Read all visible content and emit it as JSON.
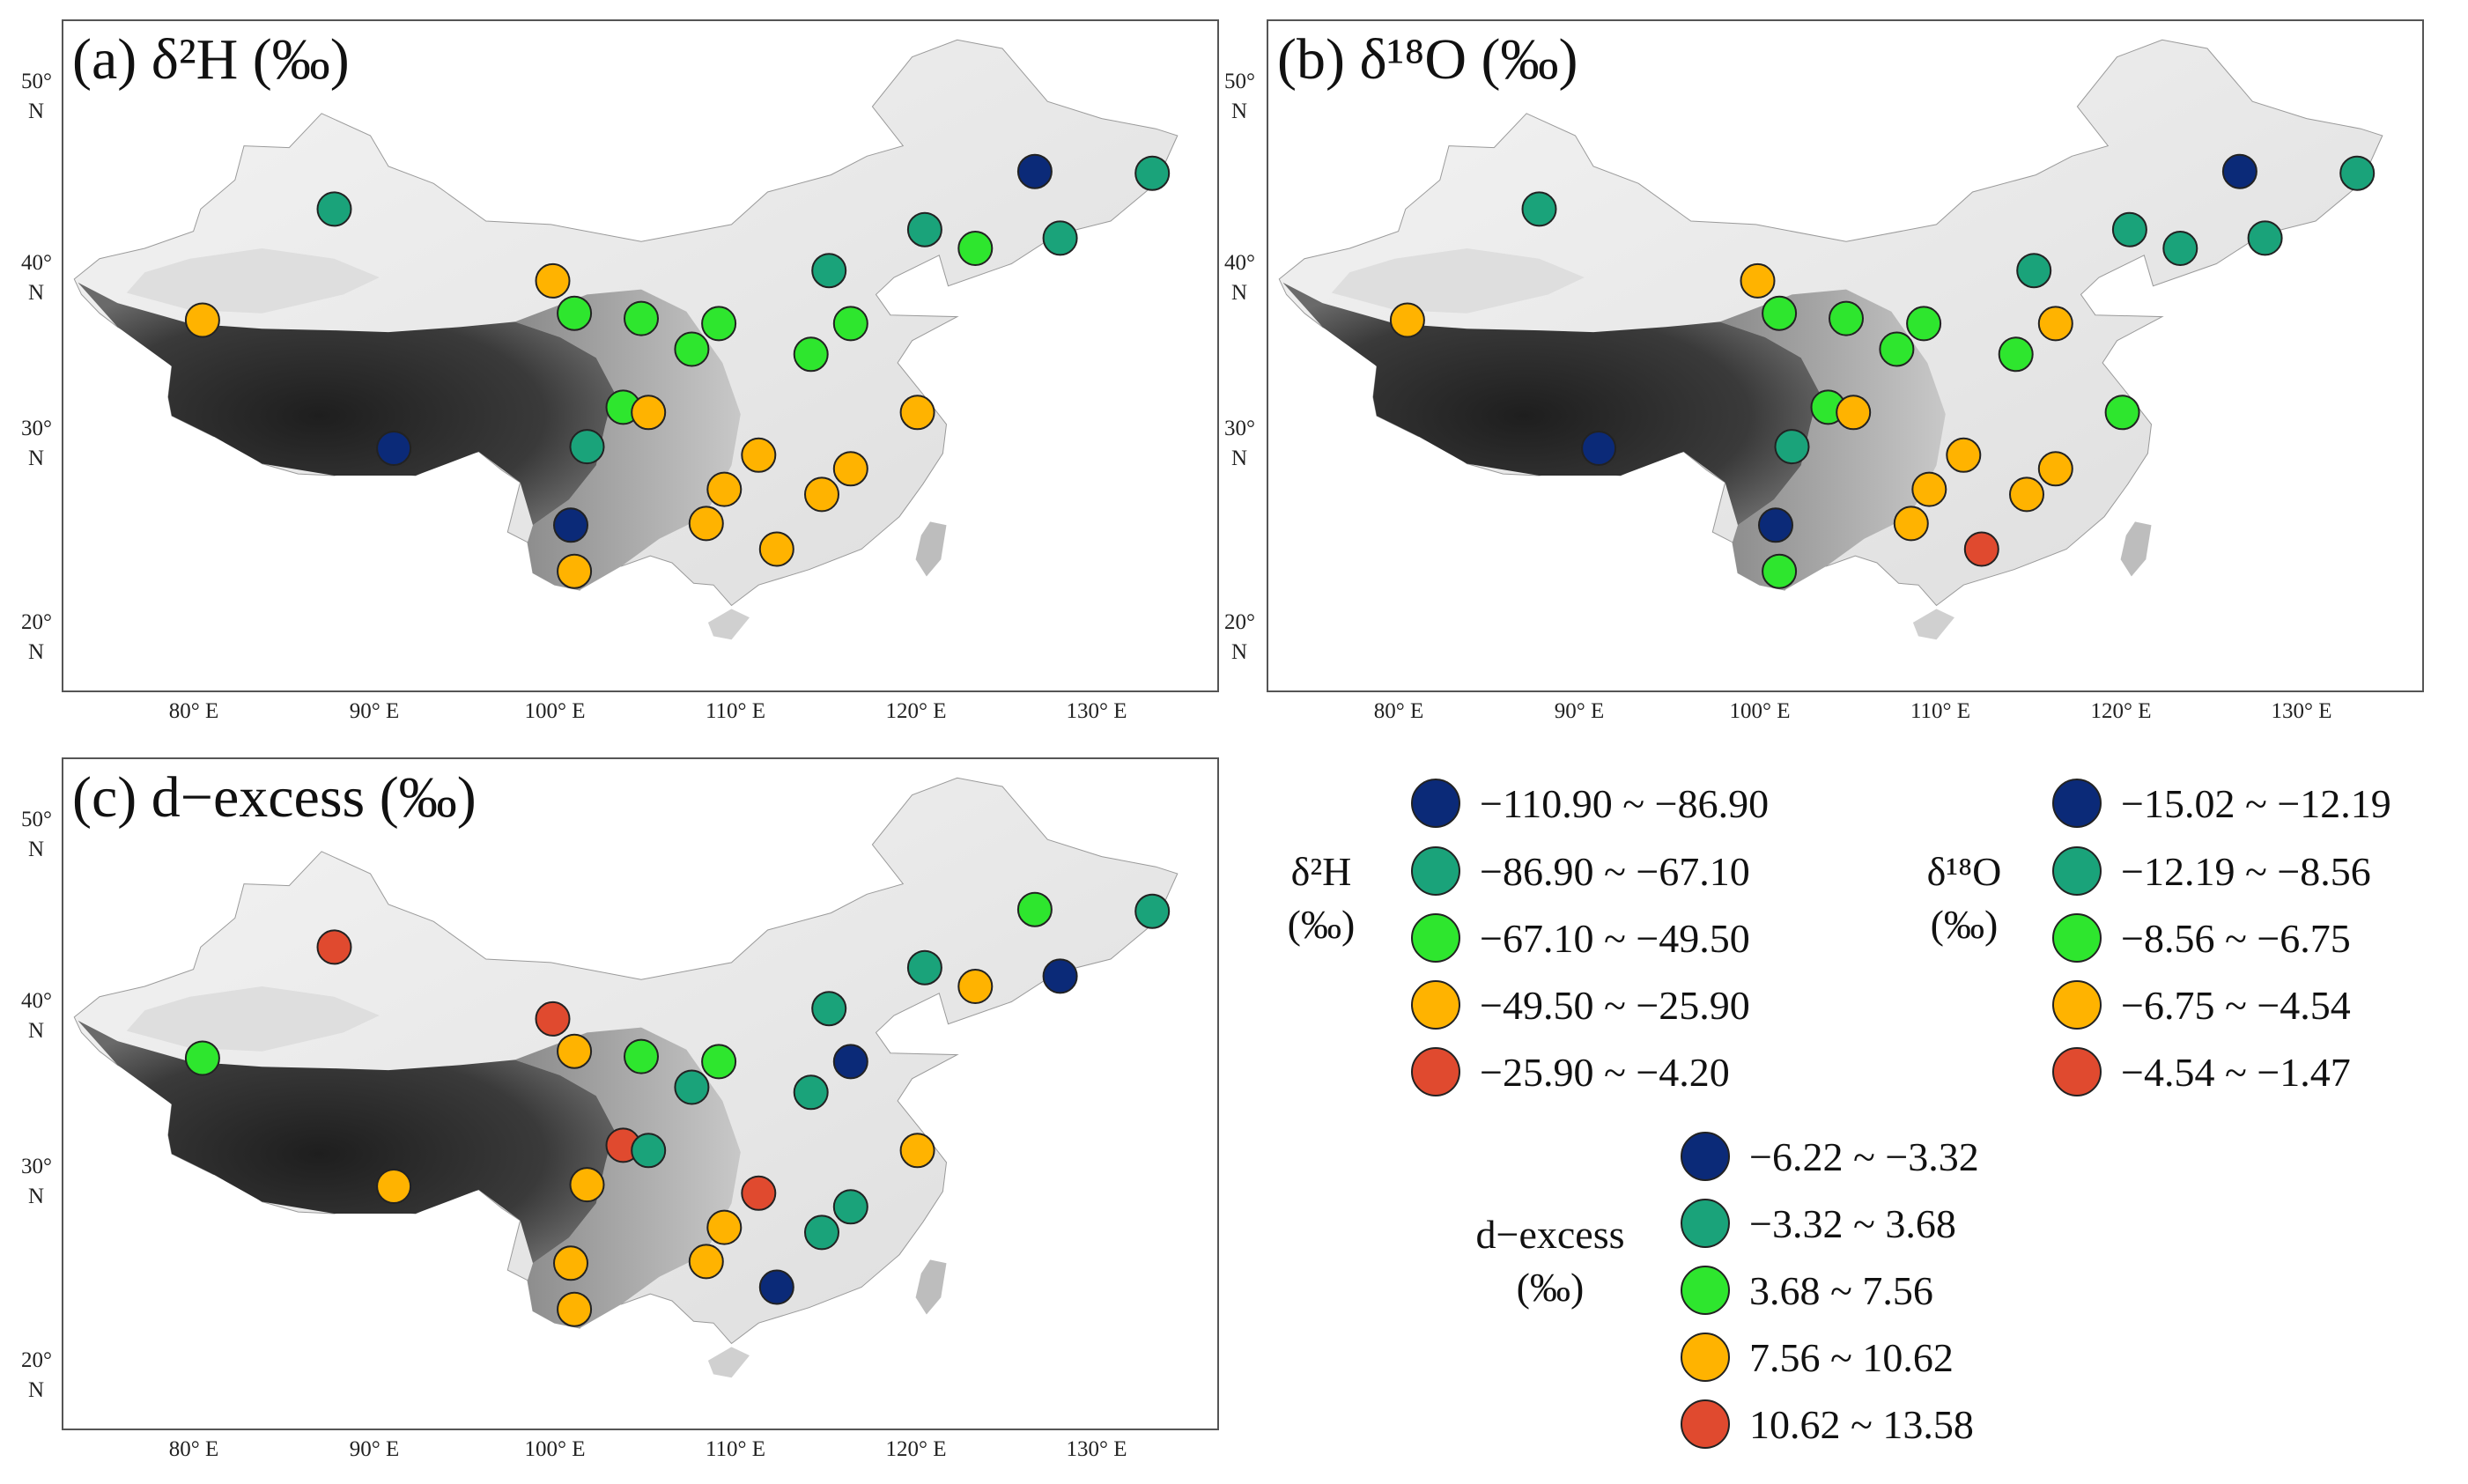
{
  "colors": {
    "class1": "#0b2a78",
    "class2": "#1aa37a",
    "class3": "#2ee62e",
    "class4": "#ffb300",
    "class5": "#e04a2f"
  },
  "axes": {
    "y_labels": [
      {
        "deg": "50°",
        "hemi": "N"
      },
      {
        "deg": "40°",
        "hemi": "N"
      },
      {
        "deg": "30°",
        "hemi": "N"
      },
      {
        "deg": "20°",
        "hemi": "N"
      }
    ],
    "x_labels": [
      "80° E",
      "90° E",
      "100° E",
      "110° E",
      "120° E",
      "130° E"
    ]
  },
  "panels": [
    {
      "key": "a",
      "title": "(a) δ²H (‰)",
      "stations": [
        {
          "lon": 126.8,
          "lat": 45.7,
          "cls": 1
        },
        {
          "lon": 133.3,
          "lat": 45.6,
          "cls": 2
        },
        {
          "lon": 88.0,
          "lat": 43.5,
          "cls": 2
        },
        {
          "lon": 120.7,
          "lat": 42.3,
          "cls": 2
        },
        {
          "lon": 128.2,
          "lat": 41.8,
          "cls": 2
        },
        {
          "lon": 123.5,
          "lat": 41.2,
          "cls": 3
        },
        {
          "lon": 115.4,
          "lat": 39.9,
          "cls": 2
        },
        {
          "lon": 100.1,
          "lat": 39.3,
          "cls": 4
        },
        {
          "lon": 101.3,
          "lat": 37.4,
          "cls": 3
        },
        {
          "lon": 105.0,
          "lat": 37.1,
          "cls": 3
        },
        {
          "lon": 109.3,
          "lat": 36.8,
          "cls": 3
        },
        {
          "lon": 116.6,
          "lat": 36.8,
          "cls": 3
        },
        {
          "lon": 107.8,
          "lat": 35.3,
          "cls": 3
        },
        {
          "lon": 114.4,
          "lat": 35.0,
          "cls": 3
        },
        {
          "lon": 80.7,
          "lat": 37.0,
          "cls": 4
        },
        {
          "lon": 104.0,
          "lat": 31.9,
          "cls": 3
        },
        {
          "lon": 105.4,
          "lat": 31.6,
          "cls": 4
        },
        {
          "lon": 120.3,
          "lat": 31.6,
          "cls": 4
        },
        {
          "lon": 91.3,
          "lat": 29.5,
          "cls": 1
        },
        {
          "lon": 102.0,
          "lat": 29.6,
          "cls": 2
        },
        {
          "lon": 111.5,
          "lat": 29.1,
          "cls": 4
        },
        {
          "lon": 116.6,
          "lat": 28.3,
          "cls": 4
        },
        {
          "lon": 109.6,
          "lat": 27.1,
          "cls": 4
        },
        {
          "lon": 115.0,
          "lat": 26.8,
          "cls": 4
        },
        {
          "lon": 101.1,
          "lat": 25.0,
          "cls": 1
        },
        {
          "lon": 108.6,
          "lat": 25.1,
          "cls": 4
        },
        {
          "lon": 112.5,
          "lat": 23.6,
          "cls": 4
        },
        {
          "lon": 101.3,
          "lat": 22.3,
          "cls": 4
        }
      ]
    },
    {
      "key": "b",
      "title": "(b) δ¹⁸O (‰)",
      "stations": [
        {
          "lon": 126.8,
          "lat": 45.7,
          "cls": 1
        },
        {
          "lon": 133.3,
          "lat": 45.6,
          "cls": 2
        },
        {
          "lon": 88.0,
          "lat": 43.5,
          "cls": 2
        },
        {
          "lon": 120.7,
          "lat": 42.3,
          "cls": 2
        },
        {
          "lon": 128.2,
          "lat": 41.8,
          "cls": 2
        },
        {
          "lon": 123.5,
          "lat": 41.2,
          "cls": 2
        },
        {
          "lon": 115.4,
          "lat": 39.9,
          "cls": 2
        },
        {
          "lon": 100.1,
          "lat": 39.3,
          "cls": 4
        },
        {
          "lon": 101.3,
          "lat": 37.4,
          "cls": 3
        },
        {
          "lon": 105.0,
          "lat": 37.1,
          "cls": 3
        },
        {
          "lon": 109.3,
          "lat": 36.8,
          "cls": 3
        },
        {
          "lon": 116.6,
          "lat": 36.8,
          "cls": 4
        },
        {
          "lon": 107.8,
          "lat": 35.3,
          "cls": 3
        },
        {
          "lon": 114.4,
          "lat": 35.0,
          "cls": 3
        },
        {
          "lon": 80.7,
          "lat": 37.0,
          "cls": 4
        },
        {
          "lon": 104.0,
          "lat": 31.9,
          "cls": 3
        },
        {
          "lon": 105.4,
          "lat": 31.6,
          "cls": 4
        },
        {
          "lon": 120.3,
          "lat": 31.6,
          "cls": 3
        },
        {
          "lon": 91.3,
          "lat": 29.5,
          "cls": 1
        },
        {
          "lon": 102.0,
          "lat": 29.6,
          "cls": 2
        },
        {
          "lon": 111.5,
          "lat": 29.1,
          "cls": 4
        },
        {
          "lon": 116.6,
          "lat": 28.3,
          "cls": 4
        },
        {
          "lon": 109.6,
          "lat": 27.1,
          "cls": 4
        },
        {
          "lon": 115.0,
          "lat": 26.8,
          "cls": 4
        },
        {
          "lon": 101.1,
          "lat": 25.0,
          "cls": 1
        },
        {
          "lon": 108.6,
          "lat": 25.1,
          "cls": 4
        },
        {
          "lon": 112.5,
          "lat": 23.6,
          "cls": 5
        },
        {
          "lon": 101.3,
          "lat": 22.3,
          "cls": 3
        }
      ]
    },
    {
      "key": "c",
      "title": "(c) d−excess  (‰)",
      "stations": [
        {
          "lon": 126.8,
          "lat": 45.7,
          "cls": 3
        },
        {
          "lon": 133.3,
          "lat": 45.6,
          "cls": 2
        },
        {
          "lon": 88.0,
          "lat": 43.5,
          "cls": 5
        },
        {
          "lon": 120.7,
          "lat": 42.3,
          "cls": 2
        },
        {
          "lon": 128.2,
          "lat": 41.8,
          "cls": 1
        },
        {
          "lon": 123.5,
          "lat": 41.2,
          "cls": 4
        },
        {
          "lon": 115.4,
          "lat": 39.9,
          "cls": 2
        },
        {
          "lon": 100.1,
          "lat": 39.3,
          "cls": 5
        },
        {
          "lon": 101.3,
          "lat": 37.4,
          "cls": 4
        },
        {
          "lon": 105.0,
          "lat": 37.1,
          "cls": 3
        },
        {
          "lon": 109.3,
          "lat": 36.8,
          "cls": 3
        },
        {
          "lon": 116.6,
          "lat": 36.8,
          "cls": 1
        },
        {
          "lon": 107.8,
          "lat": 35.3,
          "cls": 2
        },
        {
          "lon": 114.4,
          "lat": 35.0,
          "cls": 2
        },
        {
          "lon": 80.7,
          "lat": 37.0,
          "cls": 3
        },
        {
          "lon": 104.0,
          "lat": 31.9,
          "cls": 5
        },
        {
          "lon": 105.4,
          "lat": 31.6,
          "cls": 2
        },
        {
          "lon": 120.3,
          "lat": 31.6,
          "cls": 4
        },
        {
          "lon": 91.3,
          "lat": 29.5,
          "cls": 4
        },
        {
          "lon": 102.0,
          "lat": 29.6,
          "cls": 4
        },
        {
          "lon": 111.5,
          "lat": 29.1,
          "cls": 5
        },
        {
          "lon": 116.6,
          "lat": 28.3,
          "cls": 2
        },
        {
          "lon": 109.6,
          "lat": 27.1,
          "cls": 4
        },
        {
          "lon": 115.0,
          "lat": 26.8,
          "cls": 2
        },
        {
          "lon": 101.1,
          "lat": 25.0,
          "cls": 4
        },
        {
          "lon": 108.6,
          "lat": 25.1,
          "cls": 4
        },
        {
          "lon": 112.5,
          "lat": 23.6,
          "cls": 1
        },
        {
          "lon": 101.3,
          "lat": 22.3,
          "cls": 4
        }
      ]
    }
  ],
  "legends": {
    "d2h": {
      "title_line1": "δ²H",
      "title_line2": "(‰)",
      "items": [
        "−110.90 ~ −86.90",
        "−86.90 ~ −67.10",
        "−67.10 ~ −49.50",
        "−49.50 ~ −25.90",
        "−25.90 ~ −4.20"
      ]
    },
    "d18o": {
      "title_line1": "δ¹⁸O",
      "title_line2": "(‰)",
      "items": [
        "−15.02 ~ −12.19",
        "−12.19 ~ −8.56",
        "−8.56 ~ −6.75",
        "−6.75 ~ −4.54",
        "−4.54 ~ −1.47"
      ]
    },
    "dex": {
      "title_line1": "d−excess",
      "title_line2": "(‰)",
      "items": [
        "−6.22 ~ −3.32",
        "−3.32 ~ 3.68",
        "3.68 ~ 7.56",
        "7.56 ~ 10.62",
        "10.62 ~ 13.58"
      ]
    }
  }
}
